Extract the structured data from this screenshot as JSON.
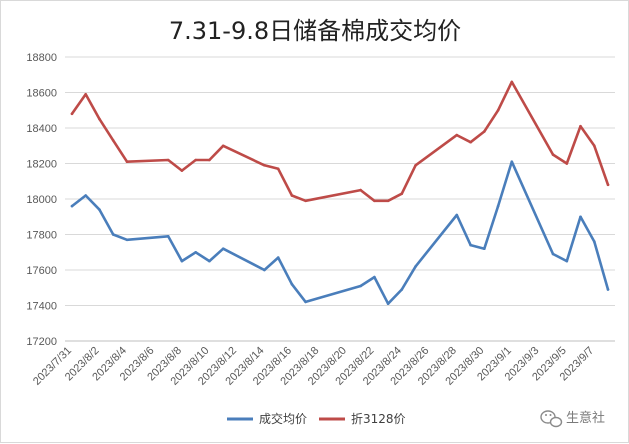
{
  "chart_data": {
    "type": "line",
    "title": "7.31-9.8日储备棉成交均价",
    "xlabel": "",
    "ylabel": "",
    "ylim": [
      17200,
      18800
    ],
    "yticks": [
      17200,
      17400,
      17600,
      17800,
      18000,
      18200,
      18400,
      18600,
      18800
    ],
    "grid": true,
    "legend_position": "bottom",
    "x": [
      "2023/7/31",
      "2023/8/1",
      "2023/8/2",
      "2023/8/3",
      "2023/8/4",
      "2023/8/7",
      "2023/8/8",
      "2023/8/9",
      "2023/8/10",
      "2023/8/11",
      "2023/8/14",
      "2023/8/15",
      "2023/8/16",
      "2023/8/17",
      "2023/8/21",
      "2023/8/22",
      "2023/8/23",
      "2023/8/24",
      "2023/8/25",
      "2023/8/28",
      "2023/8/29",
      "2023/8/30",
      "2023/8/31",
      "2023/9/1",
      "2023/9/4",
      "2023/9/5",
      "2023/9/6",
      "2023/9/7",
      "2023/9/8"
    ],
    "xtick_labels": [
      "2023/7/31",
      "2023/8/2",
      "2023/8/4",
      "2023/8/6",
      "2023/8/8",
      "2023/8/10",
      "2023/8/12",
      "2023/8/14",
      "2023/8/16",
      "2023/8/18",
      "2023/8/20",
      "2023/8/22",
      "2023/8/24",
      "2023/8/26",
      "2023/8/28",
      "2023/8/30",
      "2023/9/1",
      "2023/9/3",
      "2023/9/5",
      "2023/9/7"
    ],
    "series": [
      {
        "name": "成交均价",
        "color": "#4a7ebb",
        "values": [
          17960,
          18020,
          17940,
          17800,
          17770,
          17790,
          17650,
          17700,
          17650,
          17720,
          17600,
          17670,
          17520,
          17420,
          17510,
          17560,
          17410,
          17490,
          17620,
          17910,
          17740,
          17720,
          17960,
          18210,
          17690,
          17650,
          17900,
          17760,
          17490
        ]
      },
      {
        "name": "折3128价",
        "color": "#be4b48",
        "values": [
          18480,
          18590,
          18450,
          18330,
          18210,
          18220,
          18160,
          18220,
          18220,
          18300,
          18190,
          18170,
          18020,
          17990,
          18050,
          17990,
          17990,
          18030,
          18190,
          18360,
          18320,
          18380,
          18500,
          18660,
          18250,
          18200,
          18410,
          18300,
          18080
        ]
      }
    ]
  },
  "watermark": {
    "text": "生意社",
    "icon": "wechat-icon"
  }
}
